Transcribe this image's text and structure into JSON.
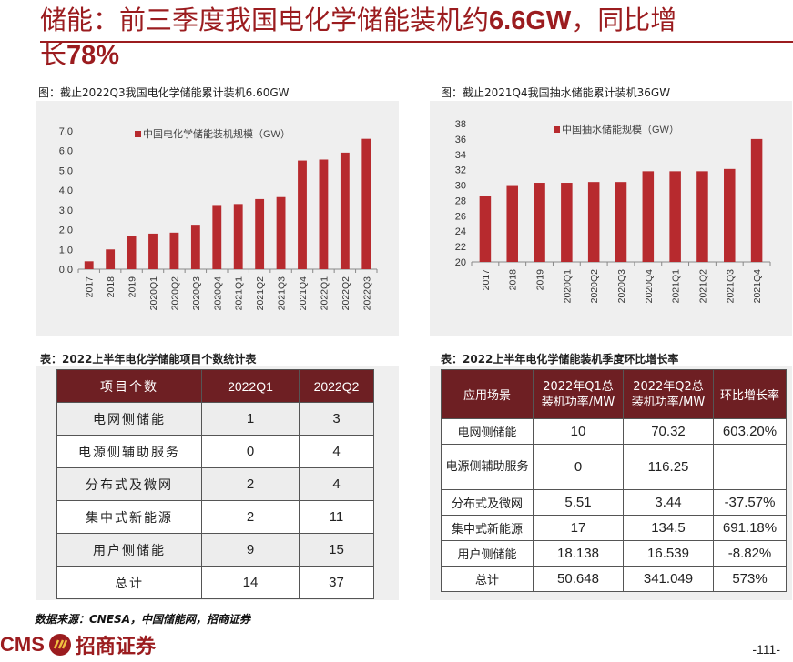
{
  "title": {
    "line1_prefix": "储能：前三季度我国电化学储能装机约",
    "line1_value": "6.6GW",
    "line1_suffix": "，同比增",
    "line2_prefix": "长",
    "line2_value": "78%"
  },
  "chart1": {
    "caption": "图：截止2022Q3我国电化学储能累计装机6.60GW",
    "legend": "中国电化学储能装机规模（GW）",
    "chart_data": {
      "type": "bar",
      "categories": [
        "2017",
        "2018",
        "2019",
        "2020Q1",
        "2020Q2",
        "2020Q3",
        "2020Q4",
        "2021Q1",
        "2021Q2",
        "2021Q3",
        "2021Q4",
        "2022Q1",
        "2022Q2",
        "2022Q3"
      ],
      "series": [
        {
          "name": "中国电化学储能装机规模（GW）",
          "values": [
            0.4,
            1.0,
            1.7,
            1.8,
            1.85,
            2.25,
            3.25,
            3.3,
            3.55,
            3.65,
            5.5,
            5.55,
            5.9,
            6.6
          ]
        }
      ],
      "ylim": [
        0,
        7
      ],
      "yticks": [
        "0.0",
        "1.0",
        "2.0",
        "3.0",
        "4.0",
        "5.0",
        "6.0",
        "7.0"
      ],
      "color": "#b72a2e",
      "legend_position": "top"
    }
  },
  "chart2": {
    "caption": "图：截止2021Q4我国抽水储能累计装机36GW",
    "legend": "中国抽水储能规模（GW）",
    "chart_data": {
      "type": "bar",
      "categories": [
        "2017",
        "2018",
        "2019",
        "2020Q1",
        "2020Q2",
        "2020Q3",
        "2020Q4",
        "2021Q1",
        "2021Q2",
        "2021Q3",
        "2021Q4"
      ],
      "series": [
        {
          "name": "中国抽水储能规模（GW）",
          "values": [
            28.6,
            30.0,
            30.3,
            30.3,
            30.4,
            30.4,
            31.8,
            31.8,
            31.8,
            32.1,
            36.0
          ]
        }
      ],
      "ylim": [
        20,
        38
      ],
      "yticks": [
        "20",
        "22",
        "24",
        "26",
        "28",
        "30",
        "32",
        "34",
        "36",
        "38"
      ],
      "color": "#b72a2e",
      "legend_position": "top"
    }
  },
  "table1": {
    "caption": "表：2022上半年电化学储能项目个数统计表",
    "headers": [
      "项目个数",
      "2022Q1",
      "2022Q2"
    ],
    "rows": [
      [
        "电网侧储能",
        "1",
        "3"
      ],
      [
        "电源侧辅助服务",
        "0",
        "4"
      ],
      [
        "分布式及微网",
        "2",
        "4"
      ],
      [
        "集中式新能源",
        "2",
        "11"
      ],
      [
        "用户侧储能",
        "9",
        "15"
      ],
      [
        "总计",
        "14",
        "37"
      ]
    ]
  },
  "table2": {
    "caption": "表：2022上半年电化学储能装机季度环比增长率",
    "headers": [
      "应用场景",
      "2022年Q1总装机功率/MW",
      "2022年Q2总装机功率/MW",
      "环比增长率"
    ],
    "rows": [
      [
        "电网侧储能",
        "10",
        "70.32",
        "603.20%"
      ],
      [
        "电源侧辅助服务",
        "0",
        "116.25",
        ""
      ],
      [
        "分布式及微网",
        "5.51",
        "3.44",
        "-37.57%"
      ],
      [
        "集中式新能源",
        "17",
        "134.5",
        "691.18%"
      ],
      [
        "用户侧储能",
        "18.138",
        "16.539",
        "-8.82%"
      ],
      [
        "总计",
        "50.648",
        "341.049",
        "573%"
      ]
    ]
  },
  "footer": {
    "source": "数据来源：CNESA，中国储能网，招商证券",
    "logo_latin": "CMS",
    "logo_cn": "招商证券",
    "page": "-111-"
  }
}
